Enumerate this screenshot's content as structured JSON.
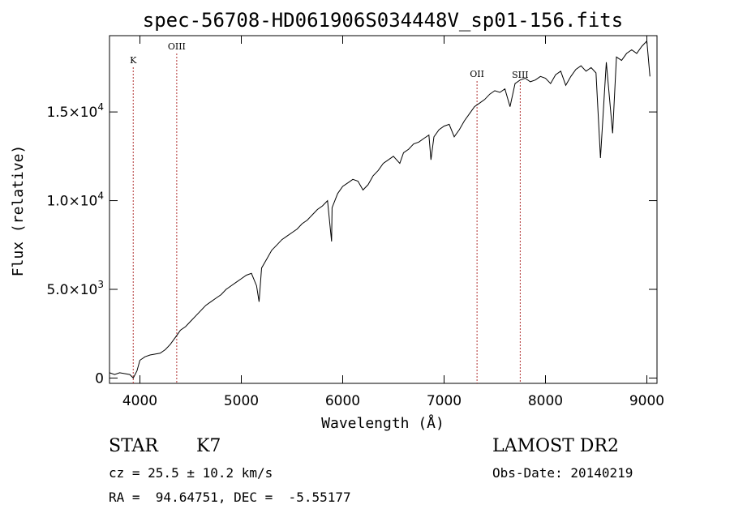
{
  "chart_data": {
    "type": "line",
    "title": "spec-56708-HD061906S034448V_sp01-156.fits",
    "xlabel": "Wavelength (Å)",
    "ylabel": "Flux (relative)",
    "xlim": [
      3700,
      9100
    ],
    "ylim": [
      -300,
      19300
    ],
    "x_ticks": [
      {
        "value": 4000,
        "label": "4000"
      },
      {
        "value": 5000,
        "label": "5000"
      },
      {
        "value": 6000,
        "label": "6000"
      },
      {
        "value": 7000,
        "label": "7000"
      },
      {
        "value": 8000,
        "label": "8000"
      },
      {
        "value": 9000,
        "label": "9000"
      }
    ],
    "y_ticks": [
      {
        "value": 0,
        "base": "0",
        "exp": ""
      },
      {
        "value": 5000,
        "base": "5.0×10",
        "exp": "3"
      },
      {
        "value": 10000,
        "base": "1.0×10",
        "exp": "4"
      },
      {
        "value": 15000,
        "base": "1.5×10",
        "exp": "4"
      }
    ],
    "line_marks": [
      {
        "label": "K",
        "wavelength": 3934
      },
      {
        "label": "OIII",
        "wavelength": 4363
      },
      {
        "label": "OII",
        "wavelength": 7325
      },
      {
        "label": "SIII",
        "wavelength": 7751
      }
    ],
    "series": [
      {
        "color": "#000000",
        "x": [
          3700,
          3750,
          3800,
          3850,
          3900,
          3934,
          3970,
          4000,
          4050,
          4100,
          4150,
          4200,
          4250,
          4300,
          4363,
          4400,
          4450,
          4500,
          4550,
          4600,
          4650,
          4700,
          4750,
          4800,
          4850,
          4900,
          4950,
          5000,
          5050,
          5100,
          5150,
          5175,
          5200,
          5250,
          5300,
          5350,
          5400,
          5450,
          5500,
          5550,
          5600,
          5650,
          5700,
          5750,
          5800,
          5850,
          5890,
          5895,
          5950,
          6000,
          6050,
          6100,
          6150,
          6200,
          6250,
          6300,
          6350,
          6400,
          6450,
          6500,
          6563,
          6600,
          6650,
          6700,
          6750,
          6800,
          6850,
          6870,
          6900,
          6950,
          7000,
          7050,
          7100,
          7150,
          7200,
          7250,
          7300,
          7350,
          7400,
          7450,
          7500,
          7550,
          7600,
          7650,
          7700,
          7750,
          7800,
          7850,
          7900,
          7950,
          8000,
          8050,
          8100,
          8150,
          8200,
          8250,
          8300,
          8350,
          8400,
          8450,
          8498,
          8542,
          8600,
          8662,
          8700,
          8750,
          8800,
          8850,
          8900,
          8950,
          9000,
          9030
        ],
        "y": [
          300,
          200,
          300,
          250,
          200,
          0,
          400,
          1000,
          1200,
          1300,
          1350,
          1400,
          1600,
          1900,
          2400,
          2700,
          2900,
          3200,
          3500,
          3800,
          4100,
          4300,
          4500,
          4700,
          5000,
          5200,
          5400,
          5600,
          5800,
          5900,
          5200,
          4300,
          6200,
          6700,
          7200,
          7500,
          7800,
          8000,
          8200,
          8400,
          8700,
          8900,
          9200,
          9500,
          9700,
          10000,
          7700,
          9600,
          10400,
          10800,
          11000,
          11200,
          11100,
          10600,
          10900,
          11400,
          11700,
          12100,
          12300,
          12500,
          12100,
          12700,
          12900,
          13200,
          13300,
          13500,
          13700,
          12300,
          13600,
          14000,
          14200,
          14300,
          13600,
          14000,
          14500,
          14900,
          15300,
          15500,
          15700,
          16000,
          16200,
          16100,
          16300,
          15300,
          16600,
          16800,
          16900,
          16700,
          16800,
          17000,
          16900,
          16600,
          17100,
          17300,
          16500,
          17000,
          17400,
          17600,
          17300,
          17500,
          17200,
          12400,
          17800,
          13800,
          18100,
          17900,
          18300,
          18500,
          18300,
          18700,
          19000,
          17000
        ]
      }
    ]
  },
  "info": {
    "class": "STAR",
    "subclass": "K7",
    "redshift": "cz = 25.5 ± 10.2 km/s",
    "coords": "RA =  94.64751, DEC =  -5.55177",
    "survey": "LAMOST DR2",
    "obs_date": "Obs-Date: 20140219"
  }
}
